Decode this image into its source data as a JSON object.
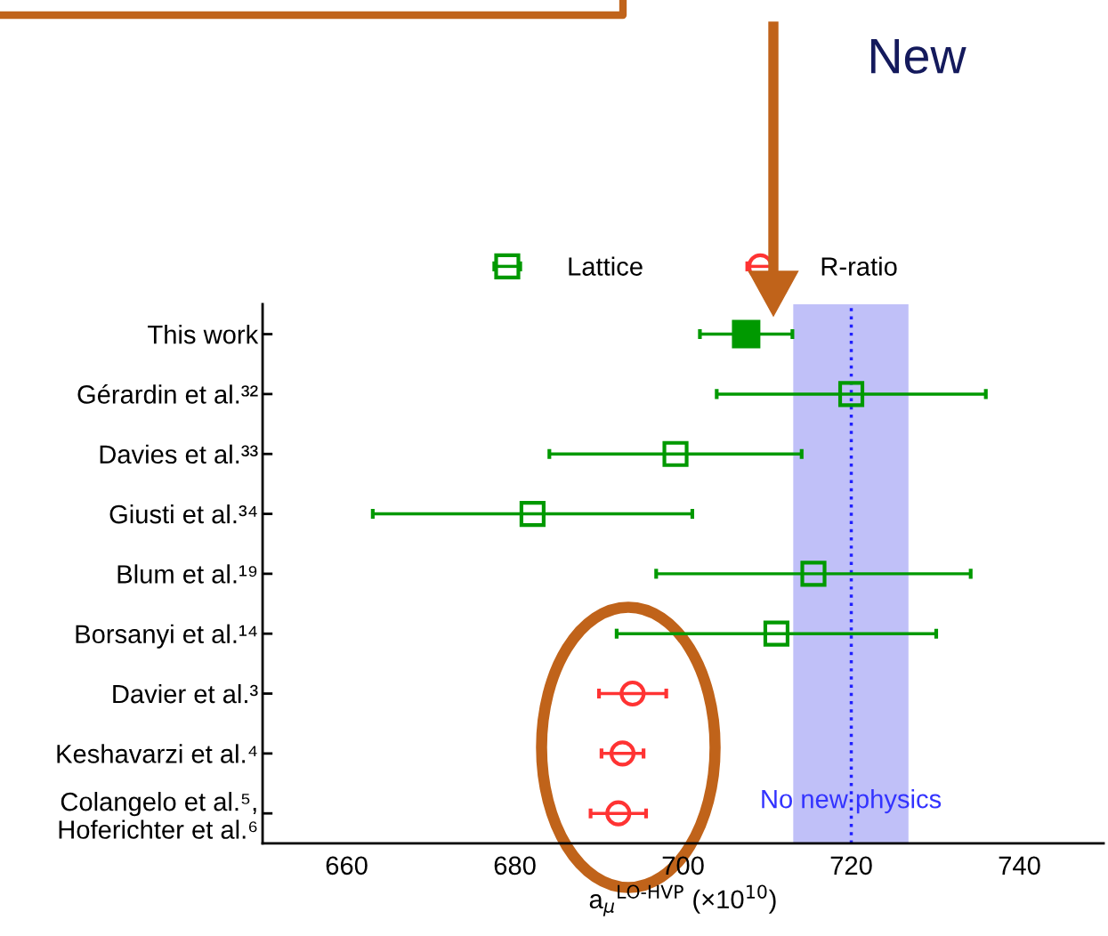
{
  "chart_data": {
    "type": "scatter",
    "orientation": "horizontal",
    "categories": [
      "This work",
      "Gérardin et al.³²",
      "Davies et al.³³",
      "Giusti et al.³⁴",
      "Blum et al.¹⁹",
      "Borsanyi et al.¹⁴",
      "Davier et al.³",
      "Keshavarzi et al.⁴",
      "Colangelo et al.⁵,\nHoferichter et al.⁶"
    ],
    "xlabel": "a$_{μ}$$^{LO-HVP}$ (×10$^{10}$)",
    "series": [
      {
        "color": "#009900",
        "marker": "square",
        "values": [
          707.5,
          null,
          null,
          null,
          null,
          null,
          null,
          null,
          null
        ],
        "errors": [
          5.5,
          null,
          null,
          null,
          null,
          null,
          null,
          null,
          null
        ]
      },
      {
        "name": "Lattice",
        "color": "#009900",
        "marker": "square",
        "values": [
          null,
          720.0,
          699.1,
          682.1,
          715.5,
          711.1,
          null,
          null,
          null
        ],
        "errors": [
          null,
          16.0,
          15.0,
          19.0,
          18.7,
          19.0,
          null,
          null,
          null
        ]
      },
      {
        "name": "R-ratio",
        "color": "#ff3333",
        "marker": "circle",
        "values": [
          null,
          null,
          null,
          null,
          null,
          null,
          694.0,
          692.8,
          692.3
        ],
        "errors": [
          null,
          null,
          null,
          null,
          null,
          null,
          4.0,
          2.5,
          3.3
        ]
      }
    ],
    "xlim": [
      650,
      750
    ],
    "xticks": [
      660,
      680,
      700,
      720,
      740
    ],
    "bands": [
      {
        "axis": "x",
        "from": 713.1,
        "to": 726.8,
        "label": "No new physics",
        "color": "#c0c0f8"
      }
    ],
    "ref_lines": [
      {
        "axis": "x",
        "value": 720,
        "color": "#2020ff",
        "line_style": "dotted"
      }
    ],
    "annotations": [
      "New"
    ],
    "legend": "top",
    "grid": false
  }
}
